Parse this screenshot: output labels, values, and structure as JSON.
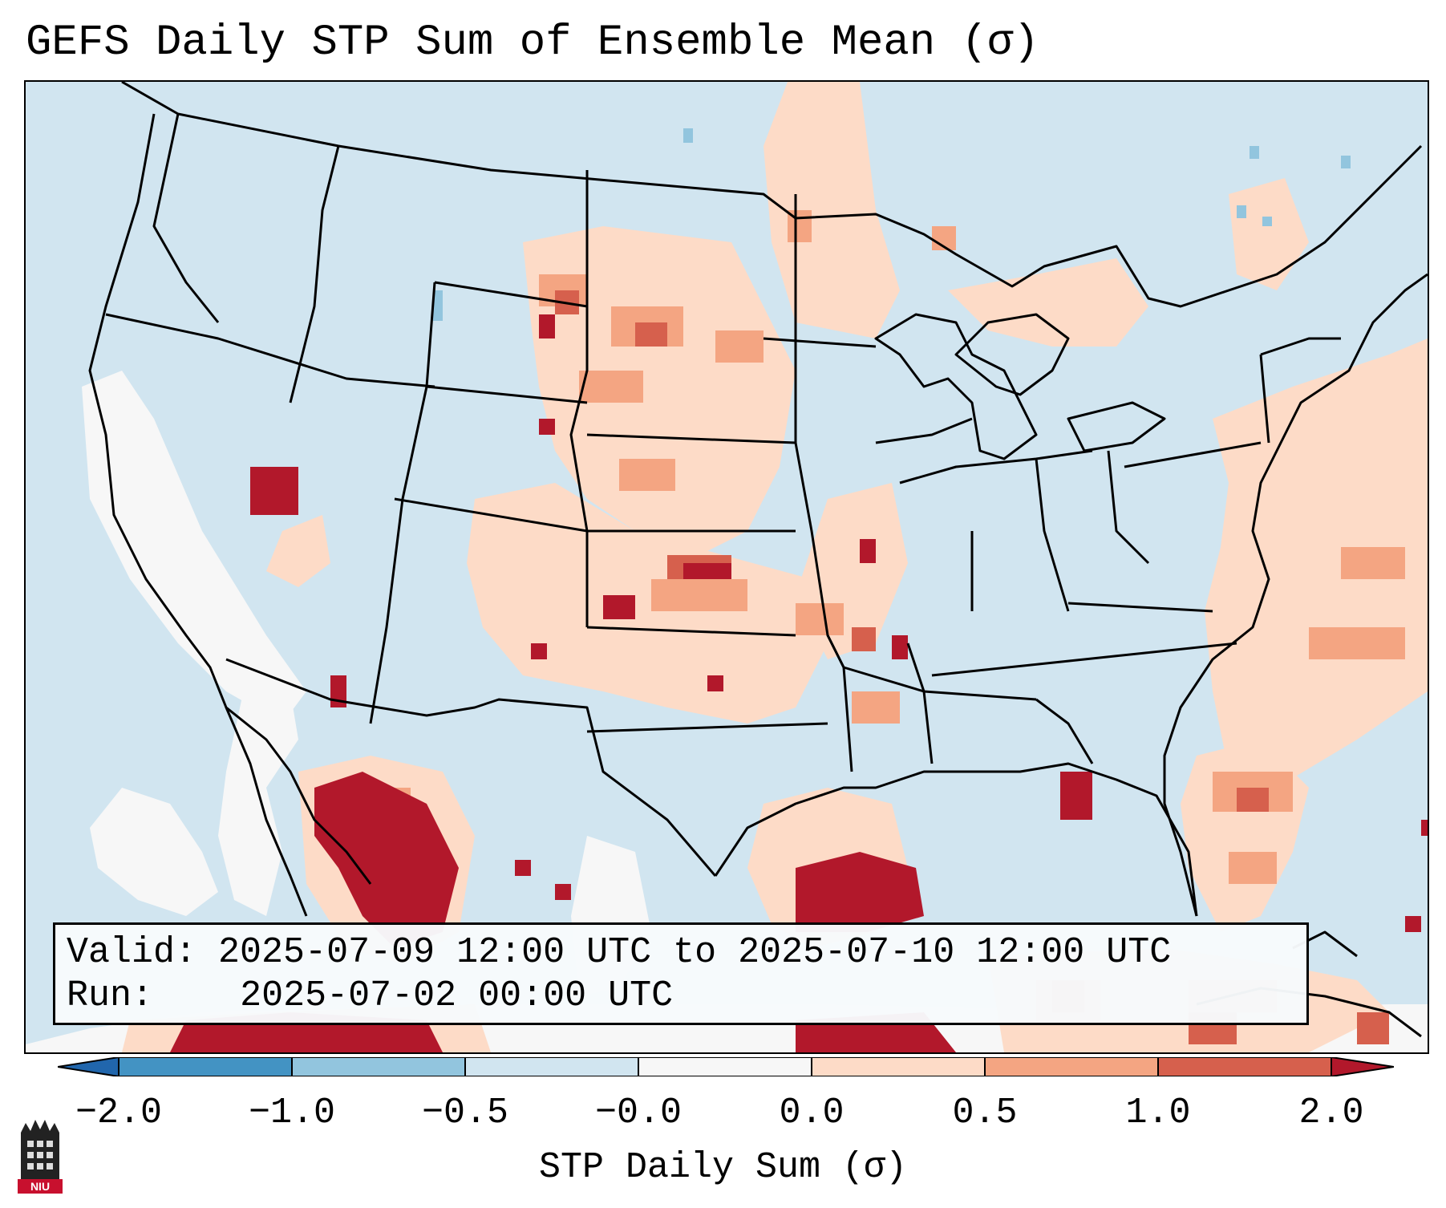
{
  "title": "GEFS Daily STP Sum of Ensemble Mean (σ)",
  "info": {
    "valid_label": "Valid:",
    "valid_value": "2025-07-09 12:00 UTC to 2025-07-10 12:00 UTC",
    "run_label": "Run:",
    "run_value": "2025-07-02 00:00 UTC"
  },
  "colorbar": {
    "label": "STP Daily Sum (σ)",
    "ticks": [
      "−2.0",
      "−1.0",
      "−0.5",
      "−0.0",
      "0.0",
      "0.5",
      "1.0",
      "2.0"
    ],
    "bins": [
      {
        "range": "< -2.0",
        "color": "#2166ac"
      },
      {
        "range": "-2.0 to -1.0",
        "color": "#4393c3"
      },
      {
        "range": "-1.0 to -0.5",
        "color": "#92c5de"
      },
      {
        "range": "-0.5 to 0.0",
        "color": "#d1e5f0"
      },
      {
        "range": "0.0",
        "color": "#f7f7f7"
      },
      {
        "range": "0.0 to 0.5",
        "color": "#fddbc7"
      },
      {
        "range": "0.5 to 1.0",
        "color": "#f4a582"
      },
      {
        "range": "1.0 to 2.0",
        "color": "#d6604d"
      },
      {
        "range": "> 2.0",
        "color": "#b2182b"
      }
    ]
  },
  "colors": {
    "background": "#d1e5f0",
    "neutral": "#f7f7f7",
    "weak_positive": "#fddbc7",
    "moderate_positive": "#f4a582",
    "strong_positive": "#d6604d",
    "extreme_positive": "#b2182b",
    "weak_negative": "#92c5de",
    "boundary": "#000000"
  },
  "logo": {
    "text": "NIU"
  }
}
